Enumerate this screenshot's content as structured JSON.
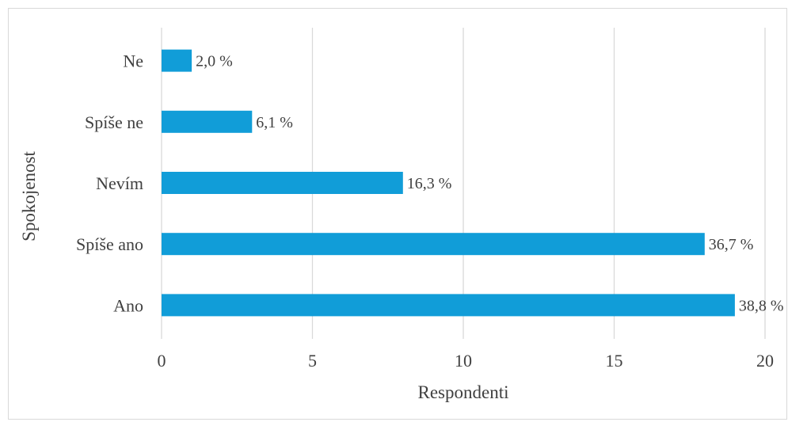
{
  "chart_data": {
    "type": "bar",
    "orientation": "horizontal",
    "categories": [
      "Ano",
      "Spíše ano",
      "Nevím",
      "Spíše ne",
      "Ne"
    ],
    "values": [
      19,
      18,
      8,
      3,
      1
    ],
    "data_labels": [
      "38,8 %",
      "36,7 %",
      "16,3 %",
      "6,1 %",
      "2,0 %"
    ],
    "xlabel": "Respondenti",
    "ylabel": "Spokojenost",
    "xlim": [
      0,
      20
    ],
    "xticks": [
      0,
      5,
      10,
      15,
      20
    ],
    "xtick_labels": [
      "0",
      "5",
      "10",
      "15",
      "20"
    ],
    "grid": true,
    "legend": "none",
    "bar_color": "#119dd8"
  }
}
